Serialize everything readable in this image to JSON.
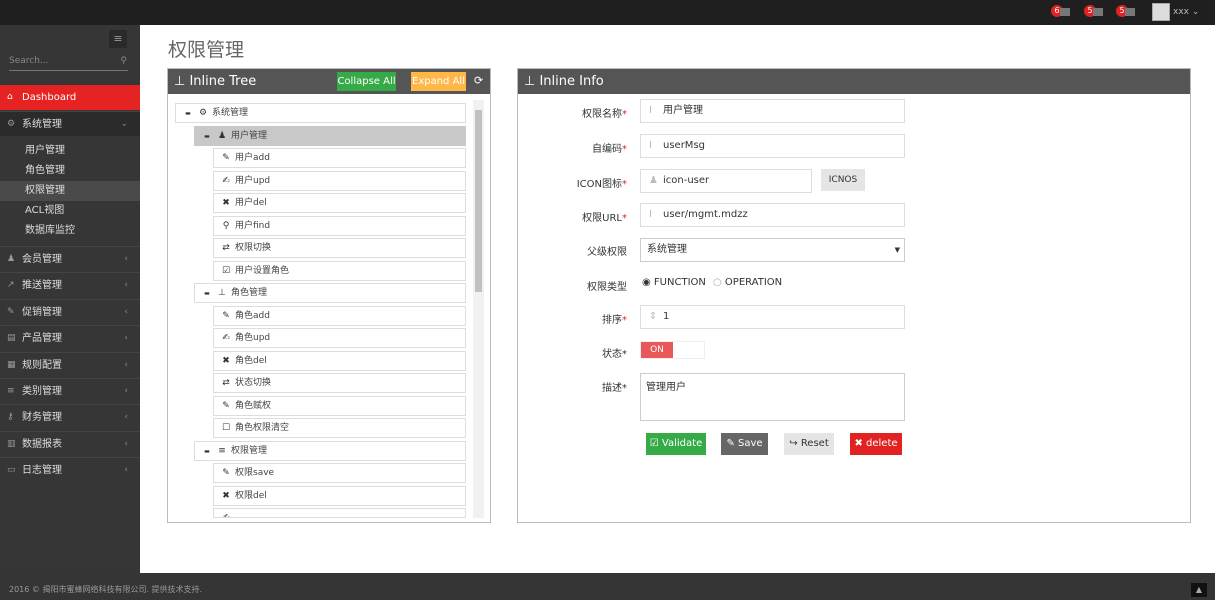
{
  "topbar": {
    "notifications": [
      {
        "count": "6",
        "icon": "bell-icon"
      },
      {
        "count": "5",
        "icon": "envelope-icon"
      },
      {
        "count": "5",
        "icon": "tasks-icon"
      }
    ],
    "username": "xxx"
  },
  "sidebar": {
    "search_placeholder": "Search...",
    "dashboard": "Dashboard",
    "system": "系统管理",
    "sub_items": [
      "用户管理",
      "角色管理",
      "权限管理",
      "ACL视图",
      "数据库监控"
    ],
    "active_sub": "权限管理",
    "items": [
      {
        "label": "会员管理",
        "icon": "user-icon"
      },
      {
        "label": "推送管理",
        "icon": "share-icon"
      },
      {
        "label": "促销管理",
        "icon": "pencil-icon"
      },
      {
        "label": "产品管理",
        "icon": "book-icon"
      },
      {
        "label": "规则配置",
        "icon": "table-icon"
      },
      {
        "label": "类别管理",
        "icon": "list-icon"
      },
      {
        "label": "财务管理",
        "icon": "key-icon"
      },
      {
        "label": "数据报表",
        "icon": "chart-icon"
      },
      {
        "label": "日志管理",
        "icon": "credit-card-icon"
      }
    ]
  },
  "page_title": "权限管理",
  "tree": {
    "title": "Inline Tree",
    "collapse_all": "Collapse All",
    "expand_all": "Expand All",
    "nodes": [
      {
        "level": 0,
        "label": "系统管理",
        "icon": "cogs-icon",
        "toggle": "−"
      },
      {
        "level": 1,
        "label": "用户管理",
        "icon": "user-icon",
        "toggle": "−",
        "selected": true
      },
      {
        "level": 2,
        "label": "用户add",
        "icon": "pencil-icon"
      },
      {
        "level": 2,
        "label": "用户upd",
        "icon": "edit-icon"
      },
      {
        "level": 2,
        "label": "用户del",
        "icon": "times-icon"
      },
      {
        "level": 2,
        "label": "用户find",
        "icon": "search-icon"
      },
      {
        "level": 2,
        "label": "权限切换",
        "icon": "retweet-icon"
      },
      {
        "level": 2,
        "label": "用户设置角色",
        "icon": "check-square-icon"
      },
      {
        "level": 1,
        "label": "角色管理",
        "icon": "sitemap-icon",
        "toggle": "−"
      },
      {
        "level": 2,
        "label": "角色add",
        "icon": "pencil-icon"
      },
      {
        "level": 2,
        "label": "角色upd",
        "icon": "edit-icon"
      },
      {
        "level": 2,
        "label": "角色del",
        "icon": "times-icon"
      },
      {
        "level": 2,
        "label": "状态切换",
        "icon": "retweet-icon"
      },
      {
        "level": 2,
        "label": "角色赋权",
        "icon": "pencil-icon"
      },
      {
        "level": 2,
        "label": "角色权限清空",
        "icon": "square-icon"
      },
      {
        "level": 1,
        "label": "权限管理",
        "icon": "list-icon",
        "toggle": "−"
      },
      {
        "level": 2,
        "label": "权限save",
        "icon": "pencil-icon"
      },
      {
        "level": 2,
        "label": "权限del",
        "icon": "times-icon"
      },
      {
        "level": 2,
        "label": "",
        "icon": "edit-icon"
      }
    ]
  },
  "info": {
    "title": "Inline Info",
    "name_label": "权限名称",
    "name_value": "用户管理",
    "code_label": "自编码",
    "code_value": "userMsg",
    "icon_label": "ICON图标",
    "icon_value": "icon-user",
    "icnos": "ICNOS",
    "url_label": "权限URL",
    "url_value": "user/mgmt.mdzz",
    "parent_label": "父级权限",
    "parent_value": "系统管理",
    "type_label": "权限类型",
    "type_options": [
      "FUNCTION",
      "OPERATION"
    ],
    "type_selected": "FUNCTION",
    "order_label": "排序",
    "order_value": "1",
    "status_label": "状态",
    "status_value": "ON",
    "desc_label": "描述",
    "desc_value": "管理用户",
    "required_mark": "*",
    "validate": "Validate",
    "save": "Save",
    "reset": "Reset",
    "delete": "delete"
  },
  "colors": {
    "danger": "#e52323",
    "success": "#35aa47",
    "warning": "#ffb848",
    "toggle_on": "#e85858"
  },
  "footer": "2016 © 揭阳市蜜蜂网络科技有限公司. 提供技术支持."
}
